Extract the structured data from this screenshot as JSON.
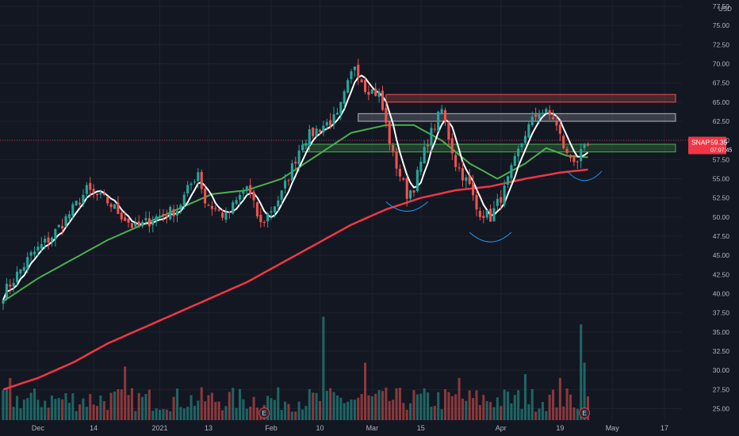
{
  "chart_data": {
    "type": "candlestick",
    "ticker": "SNAP",
    "last_price": "59.35",
    "countdown": "07:07:45",
    "currency": "USD",
    "y_range": [
      23.5,
      77.5
    ],
    "y_ticks": [
      "25.00",
      "27.50",
      "30.00",
      "32.50",
      "35.00",
      "37.50",
      "40.00",
      "42.50",
      "45.00",
      "47.50",
      "50.00",
      "52.50",
      "55.00",
      "57.50",
      "60.00",
      "62.50",
      "65.00",
      "67.50",
      "70.00",
      "72.50",
      "75.00",
      "77.50"
    ],
    "x_labels": [
      "Dec",
      "14",
      "2021",
      "13",
      "Feb",
      "10",
      "Mar",
      "15",
      "Apr",
      "19",
      "May",
      "17"
    ],
    "x_range_index": [
      0,
      195
    ],
    "x_label_index": [
      10,
      26,
      45,
      59,
      77,
      91,
      106,
      120,
      143,
      160,
      175,
      190
    ],
    "key_points": [
      [
        0,
        40
      ],
      [
        8,
        45
      ],
      [
        14,
        47.5
      ],
      [
        20,
        51
      ],
      [
        24,
        53.5
      ],
      [
        30,
        52
      ],
      [
        38,
        48.5
      ],
      [
        44,
        50
      ],
      [
        50,
        51
      ],
      [
        56,
        56
      ],
      [
        58,
        52
      ],
      [
        64,
        50
      ],
      [
        70,
        54
      ],
      [
        74,
        49
      ],
      [
        80,
        53
      ],
      [
        86,
        60
      ],
      [
        92,
        62
      ],
      [
        96,
        63
      ],
      [
        101,
        70
      ],
      [
        104,
        67
      ],
      [
        108,
        66
      ],
      [
        112,
        58
      ],
      [
        116,
        53
      ],
      [
        118,
        54
      ],
      [
        122,
        60
      ],
      [
        126,
        64
      ],
      [
        130,
        57
      ],
      [
        134,
        54
      ],
      [
        136,
        51
      ],
      [
        140,
        50
      ],
      [
        144,
        53.5
      ],
      [
        150,
        61
      ],
      [
        154,
        64
      ],
      [
        158,
        63
      ],
      [
        162,
        58
      ],
      [
        165,
        57.5
      ],
      [
        168,
        59.35
      ]
    ],
    "candles_count": 169,
    "ma_fast_color": "#ffffff",
    "ma_mid_color": "#4caf50",
    "ma_slow_color": "#f23645",
    "ma_mid_points": [
      [
        0,
        39
      ],
      [
        10,
        42
      ],
      [
        20,
        44.5
      ],
      [
        30,
        47
      ],
      [
        40,
        49
      ],
      [
        50,
        51
      ],
      [
        60,
        53
      ],
      [
        70,
        53.5
      ],
      [
        80,
        55
      ],
      [
        90,
        58
      ],
      [
        100,
        61
      ],
      [
        110,
        62
      ],
      [
        118,
        62
      ],
      [
        126,
        60
      ],
      [
        134,
        57
      ],
      [
        142,
        55
      ],
      [
        150,
        57
      ],
      [
        156,
        59
      ],
      [
        162,
        58
      ],
      [
        168,
        57.8
      ]
    ],
    "ma_slow_points": [
      [
        0,
        27.5
      ],
      [
        10,
        29
      ],
      [
        20,
        31
      ],
      [
        30,
        33.5
      ],
      [
        40,
        35.5
      ],
      [
        50,
        37.5
      ],
      [
        60,
        39.5
      ],
      [
        70,
        41.5
      ],
      [
        80,
        44
      ],
      [
        90,
        46.5
      ],
      [
        100,
        49
      ],
      [
        110,
        51
      ],
      [
        120,
        52.5
      ],
      [
        130,
        53.5
      ],
      [
        140,
        54
      ],
      [
        150,
        55
      ],
      [
        160,
        55.8
      ],
      [
        168,
        56.2
      ]
    ],
    "volume_spikes": [
      [
        2,
        29
      ],
      [
        35,
        30.5
      ],
      [
        92,
        37
      ],
      [
        104,
        31
      ],
      [
        131,
        29
      ],
      [
        150,
        29.5
      ],
      [
        160,
        29
      ],
      [
        166,
        36
      ],
      [
        167,
        31
      ]
    ],
    "zones": [
      {
        "low": 65.0,
        "high": 66.0,
        "color": "#ef5350",
        "x_start": 110
      },
      {
        "low": 62.5,
        "high": 63.5,
        "color": "#b0b4c0",
        "x_start": 102
      },
      {
        "low": 58.5,
        "high": 59.5,
        "color": "#4caf50",
        "x_start": 86
      }
    ],
    "arcs": [
      {
        "color": "#2196f3",
        "cx": 116,
        "y": 52,
        "w": 6
      },
      {
        "color": "#2196f3",
        "cx": 140,
        "y": 48,
        "w": 6
      },
      {
        "color": "#2196f3",
        "cx": 167,
        "y": 56,
        "w": 5
      }
    ],
    "earnings_markers": [
      {
        "x": 75,
        "label": "E"
      },
      {
        "x": 167,
        "label": "E"
      }
    ]
  }
}
